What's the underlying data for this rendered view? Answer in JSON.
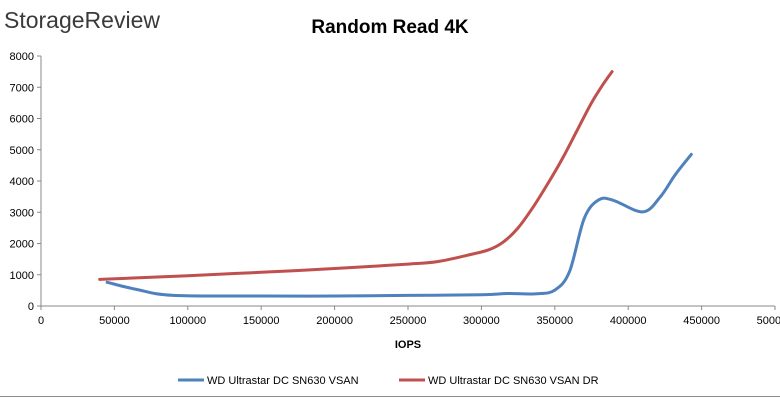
{
  "brand": "StorageReview",
  "chart_data": {
    "type": "line",
    "title": "Random Read 4K",
    "xlabel": "IOPS",
    "ylabel": "",
    "xlim": [
      0,
      500000
    ],
    "ylim": [
      0,
      8000
    ],
    "x_ticks": [
      0,
      50000,
      100000,
      150000,
      200000,
      250000,
      300000,
      350000,
      400000,
      450000,
      500000
    ],
    "y_ticks": [
      0,
      1000,
      2000,
      3000,
      4000,
      5000,
      6000,
      7000,
      8000
    ],
    "x_tick_labels": [
      "0",
      "50000",
      "100000",
      "150000",
      "200000",
      "250000",
      "300000",
      "350000",
      "400000",
      "450000",
      "500000"
    ],
    "y_tick_labels": [
      "0",
      "1000",
      "2000",
      "3000",
      "4000",
      "5000",
      "6000",
      "7000",
      "8000"
    ],
    "grid": false,
    "legend_position": "bottom",
    "series": [
      {
        "name": "WD Ultrastar DC SN630 VSAN",
        "color": "#4F81BD",
        "x": [
          45000,
          65000,
          90000,
          150000,
          200000,
          250000,
          300000,
          318000,
          338000,
          350000,
          360000,
          370000,
          380000,
          390000,
          410000,
          422000,
          432000,
          443000
        ],
        "y": [
          760,
          530,
          340,
          320,
          320,
          340,
          360,
          400,
          390,
          510,
          1100,
          2800,
          3400,
          3380,
          3010,
          3500,
          4200,
          4850
        ]
      },
      {
        "name": "WD Ultrastar DC SN630 VSAN DR",
        "color": "#C0504D",
        "x": [
          40000,
          100000,
          150000,
          200000,
          250000,
          270000,
          290000,
          305000,
          315000,
          325000,
          335000,
          345000,
          355000,
          365000,
          375000,
          383000,
          389000
        ],
        "y": [
          850,
          970,
          1080,
          1200,
          1340,
          1420,
          1620,
          1800,
          2050,
          2500,
          3150,
          3900,
          4700,
          5600,
          6500,
          7100,
          7500
        ]
      }
    ]
  }
}
